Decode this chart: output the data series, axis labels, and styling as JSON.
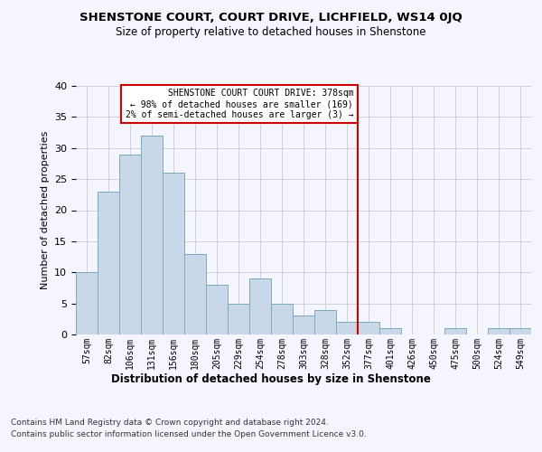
{
  "title": "SHENSTONE COURT, COURT DRIVE, LICHFIELD, WS14 0JQ",
  "subtitle": "Size of property relative to detached houses in Shenstone",
  "xlabel": "Distribution of detached houses by size in Shenstone",
  "ylabel": "Number of detached properties",
  "categories": [
    "57sqm",
    "82sqm",
    "106sqm",
    "131sqm",
    "156sqm",
    "180sqm",
    "205sqm",
    "229sqm",
    "254sqm",
    "278sqm",
    "303sqm",
    "328sqm",
    "352sqm",
    "377sqm",
    "401sqm",
    "426sqm",
    "450sqm",
    "475sqm",
    "500sqm",
    "524sqm",
    "549sqm"
  ],
  "values": [
    10,
    23,
    29,
    32,
    26,
    13,
    8,
    5,
    9,
    5,
    3,
    4,
    2,
    2,
    1,
    0,
    0,
    1,
    0,
    1,
    1
  ],
  "bar_color": "#c8d8e8",
  "bar_edge_color": "#7aaabb",
  "grid_color": "#cccccc",
  "background_color": "#f5f5ff",
  "red_line_index": 13,
  "annotation_text": "SHENSTONE COURT COURT DRIVE: 378sqm\n← 98% of detached houses are smaller (169)\n2% of semi-detached houses are larger (3) →",
  "annotation_box_color": "#ffffff",
  "annotation_border_color": "#cc0000",
  "ylim": [
    0,
    40
  ],
  "yticks": [
    0,
    5,
    10,
    15,
    20,
    25,
    30,
    35,
    40
  ],
  "footer_line1": "Contains HM Land Registry data © Crown copyright and database right 2024.",
  "footer_line2": "Contains public sector information licensed under the Open Government Licence v3.0."
}
